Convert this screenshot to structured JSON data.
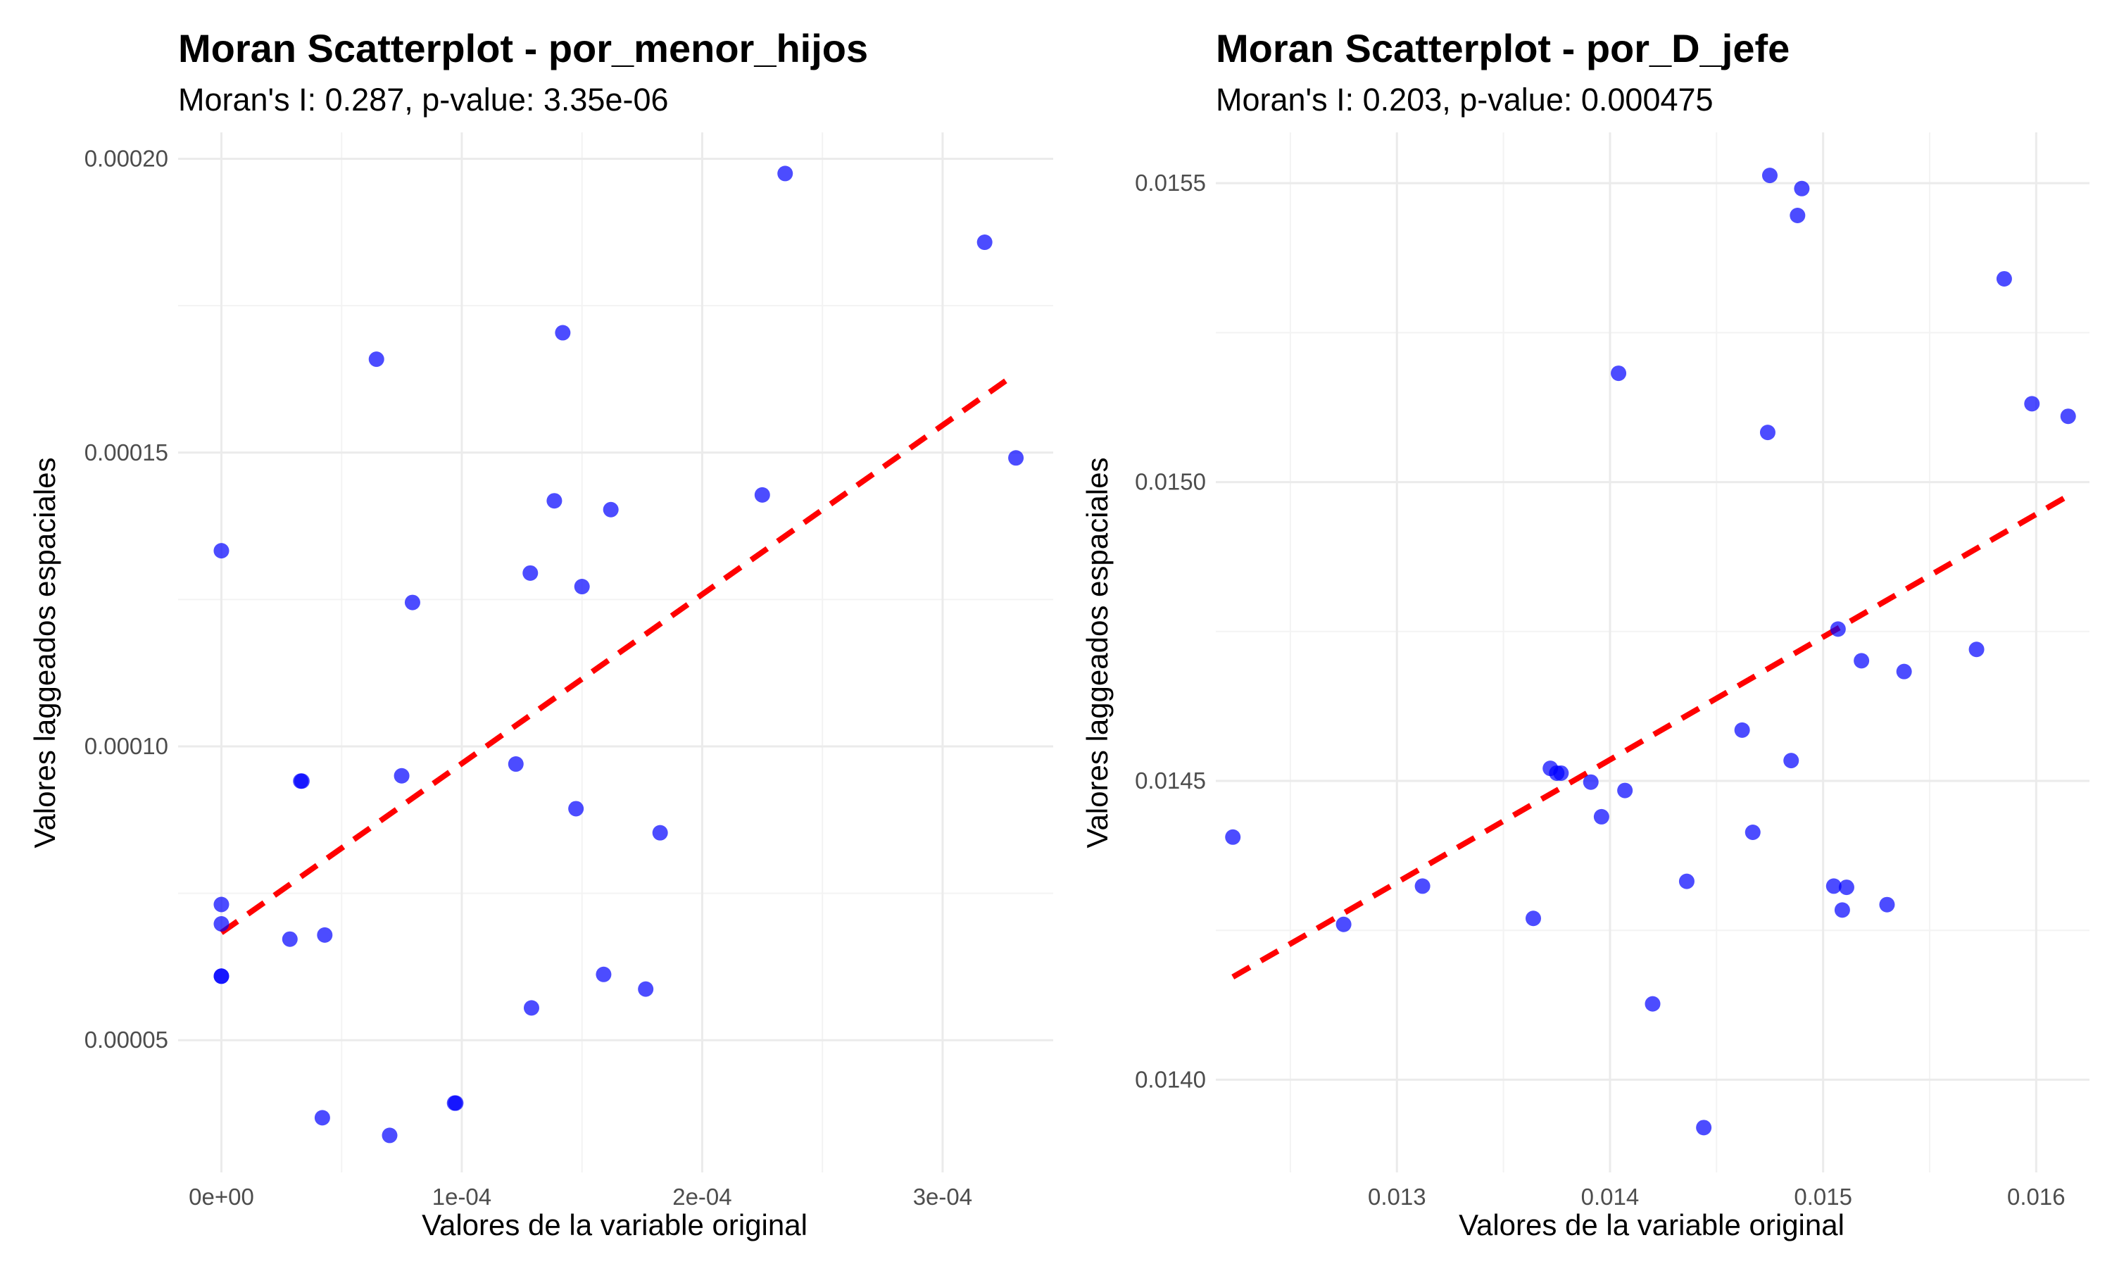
{
  "chart_data": [
    {
      "type": "scatter",
      "title": "Moran Scatterplot - por_menor_hijos",
      "subtitle": "Moran's I: 0.287, p-value: 3.35e-06",
      "xlabel": "Valores de la variable original",
      "ylabel": "Valores laggeados espaciales",
      "xlim": [
        -1.8e-05,
        0.000346
      ],
      "ylim": [
        2.75e-05,
        0.0002045
      ],
      "x_ticks": [
        0,
        0.0001,
        0.0002,
        0.0003
      ],
      "x_tick_labels": [
        "0e+00",
        "1e-04",
        "2e-04",
        "3e-04"
      ],
      "y_ticks": [
        5e-05,
        0.0001,
        0.00015,
        0.0002
      ],
      "y_tick_labels": [
        "0.00005",
        "0.00010",
        "0.00015",
        "0.00020"
      ],
      "grid": true,
      "point_color": "#0000ff",
      "line_color": "#ff0000",
      "points": [
        {
          "x": 0.0,
          "y": 0.0001333
        },
        {
          "x": 0.0,
          "y": 7.31e-05
        },
        {
          "x": 0.0,
          "y": 6.98e-05
        },
        {
          "x": 0.0,
          "y": 6.09e-05
        },
        {
          "x": 0.0,
          "y": 6.09e-05
        },
        {
          "x": 2.85e-05,
          "y": 6.72e-05
        },
        {
          "x": 3.3e-05,
          "y": 9.41e-05
        },
        {
          "x": 3.35e-05,
          "y": 9.41e-05
        },
        {
          "x": 4.2e-05,
          "y": 3.68e-05
        },
        {
          "x": 4.3e-05,
          "y": 6.79e-05
        },
        {
          "x": 6.45e-05,
          "y": 0.0001659
        },
        {
          "x": 7e-05,
          "y": 3.38e-05
        },
        {
          "x": 7.5e-05,
          "y": 9.5e-05
        },
        {
          "x": 7.95e-05,
          "y": 0.0001245
        },
        {
          "x": 9.7e-05,
          "y": 3.93e-05
        },
        {
          "x": 9.75e-05,
          "y": 3.93e-05
        },
        {
          "x": 0.0001225,
          "y": 9.7e-05
        },
        {
          "x": 0.0001285,
          "y": 0.0001295
        },
        {
          "x": 0.000129,
          "y": 5.55e-05
        },
        {
          "x": 0.0001385,
          "y": 0.0001418
        },
        {
          "x": 0.000142,
          "y": 0.0001704
        },
        {
          "x": 0.0001475,
          "y": 8.94e-05
        },
        {
          "x": 0.00015,
          "y": 0.0001272
        },
        {
          "x": 0.000159,
          "y": 6.12e-05
        },
        {
          "x": 0.000162,
          "y": 0.0001403
        },
        {
          "x": 0.0001765,
          "y": 5.87e-05
        },
        {
          "x": 0.0001825,
          "y": 8.53e-05
        },
        {
          "x": 0.000225,
          "y": 0.0001428
        },
        {
          "x": 0.0002345,
          "y": 0.0001975
        },
        {
          "x": 0.0003175,
          "y": 0.0001858
        },
        {
          "x": 0.0003305,
          "y": 0.0001491
        }
      ],
      "trend_line": {
        "x": [
          0,
          0.00033
        ],
        "y": [
          6.83e-05,
          0.0001633
        ],
        "style": "dashed"
      }
    },
    {
      "type": "scatter",
      "title": "Moran Scatterplot - por_D_jefe",
      "subtitle": "Moran's I: 0.203, p-value: 0.000475",
      "xlabel": "Valores de la variable original",
      "ylabel": "Valores laggeados espaciales",
      "xlim": [
        0.01215,
        0.01625
      ],
      "ylim": [
        0.013845,
        0.015585
      ],
      "x_ticks": [
        0.013,
        0.014,
        0.015,
        0.016
      ],
      "x_tick_labels": [
        "0.013",
        "0.014",
        "0.015",
        "0.016"
      ],
      "y_ticks": [
        0.014,
        0.0145,
        0.015,
        0.0155
      ],
      "y_tick_labels": [
        "0.0140",
        "0.0145",
        "0.0150",
        "0.0155"
      ],
      "grid": true,
      "point_color": "#0000ff",
      "line_color": "#ff0000",
      "points": [
        {
          "x": 0.01223,
          "y": 0.014406
        },
        {
          "x": 0.01275,
          "y": 0.01426
        },
        {
          "x": 0.01312,
          "y": 0.014324
        },
        {
          "x": 0.01364,
          "y": 0.01427
        },
        {
          "x": 0.01372,
          "y": 0.014521
        },
        {
          "x": 0.01375,
          "y": 0.014513
        },
        {
          "x": 0.01377,
          "y": 0.014513
        },
        {
          "x": 0.01391,
          "y": 0.014498
        },
        {
          "x": 0.01396,
          "y": 0.01444
        },
        {
          "x": 0.01404,
          "y": 0.015182
        },
        {
          "x": 0.01407,
          "y": 0.014484
        },
        {
          "x": 0.0142,
          "y": 0.014127
        },
        {
          "x": 0.01436,
          "y": 0.014332
        },
        {
          "x": 0.01444,
          "y": 0.01392
        },
        {
          "x": 0.01462,
          "y": 0.014585
        },
        {
          "x": 0.01467,
          "y": 0.014414
        },
        {
          "x": 0.01474,
          "y": 0.015083
        },
        {
          "x": 0.01475,
          "y": 0.015513
        },
        {
          "x": 0.01485,
          "y": 0.014534
        },
        {
          "x": 0.01488,
          "y": 0.015446
        },
        {
          "x": 0.0149,
          "y": 0.015491
        },
        {
          "x": 0.01505,
          "y": 0.014324
        },
        {
          "x": 0.01507,
          "y": 0.014754
        },
        {
          "x": 0.01509,
          "y": 0.014284
        },
        {
          "x": 0.01511,
          "y": 0.014322
        },
        {
          "x": 0.01518,
          "y": 0.014701
        },
        {
          "x": 0.0153,
          "y": 0.014293
        },
        {
          "x": 0.01538,
          "y": 0.014683
        },
        {
          "x": 0.01572,
          "y": 0.01472
        },
        {
          "x": 0.01585,
          "y": 0.01534
        },
        {
          "x": 0.01598,
          "y": 0.015131
        },
        {
          "x": 0.01615,
          "y": 0.01511
        }
      ],
      "trend_line": {
        "x": [
          0.01223,
          0.01615
        ],
        "y": [
          0.014172,
          0.014977
        ],
        "style": "dashed"
      }
    }
  ]
}
